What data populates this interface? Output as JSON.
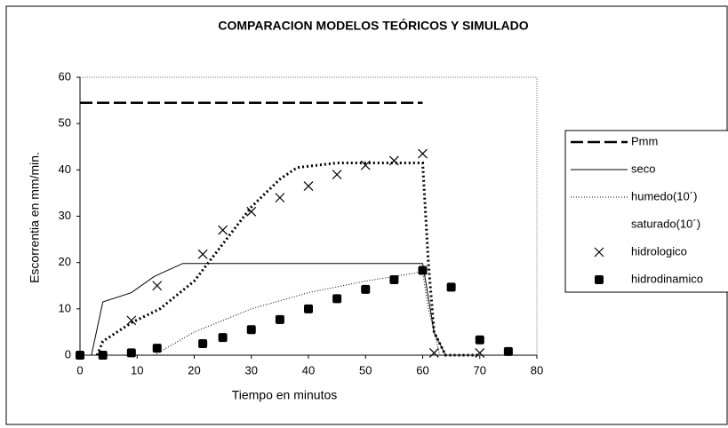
{
  "chart_data": {
    "type": "line",
    "title": "COMPARACION MODELOS TEÓRICOS Y SIMULADO",
    "xlabel": "Tiempo en minutos",
    "ylabel": "Escorrentia en mm/min.",
    "xlim": [
      0,
      80
    ],
    "xticks": [
      0,
      10,
      20,
      30,
      40,
      50,
      60,
      70,
      80
    ],
    "ylim": [
      0,
      60
    ],
    "yticks": [
      0,
      10,
      20,
      30,
      40,
      50,
      60
    ],
    "grid": false,
    "legend": "right",
    "series": [
      {
        "name": "Pmm",
        "color": "#000000",
        "style": "dashed",
        "x": [
          0,
          60
        ],
        "values": [
          54.5,
          54.5
        ]
      },
      {
        "name": "seco",
        "color": "#000000",
        "style": "solid",
        "x": [
          0,
          2,
          4,
          9,
          13,
          18,
          60,
          62,
          64,
          80
        ],
        "values": [
          0,
          0,
          11.5,
          13.5,
          17,
          19.8,
          19.8,
          5,
          0,
          0
        ]
      },
      {
        "name": "humedo(10´)",
        "color": "#000000",
        "style": "dotted",
        "x": [
          13,
          20,
          30,
          40,
          50,
          60,
          61,
          63,
          80
        ],
        "values": [
          0,
          5,
          10,
          13.5,
          16,
          18,
          10,
          0,
          0
        ]
      },
      {
        "name": "saturado(10´)",
        "color": "#000000",
        "style": "thick-dotted",
        "x": [
          3,
          4,
          9,
          14,
          20,
          25,
          30,
          35,
          38,
          45,
          60,
          61,
          62,
          64,
          70
        ],
        "values": [
          0,
          3,
          7,
          10,
          16,
          24,
          32,
          38,
          40.5,
          41.5,
          41.5,
          20,
          5,
          0,
          0
        ]
      },
      {
        "name": "hidrologico",
        "color": "#000000",
        "style": "x-marker",
        "x": [
          9,
          13.5,
          21.5,
          25,
          30,
          35,
          40,
          45,
          50,
          55,
          60,
          62,
          70
        ],
        "values": [
          7.5,
          15,
          21.8,
          27,
          31,
          34,
          36.5,
          39,
          41,
          42,
          43.5,
          0.5,
          0.5
        ]
      },
      {
        "name": "hidrodinamico",
        "color": "#000000",
        "style": "square-marker",
        "x": [
          0,
          4,
          9,
          13.5,
          21.5,
          25,
          30,
          35,
          40,
          45,
          50,
          55,
          60,
          65,
          70,
          75
        ],
        "values": [
          0,
          0,
          0.5,
          1.5,
          2.5,
          3.8,
          5.5,
          7.7,
          10,
          12.2,
          14.2,
          16.3,
          18.3,
          14.7,
          3.3,
          0.8
        ]
      }
    ]
  }
}
